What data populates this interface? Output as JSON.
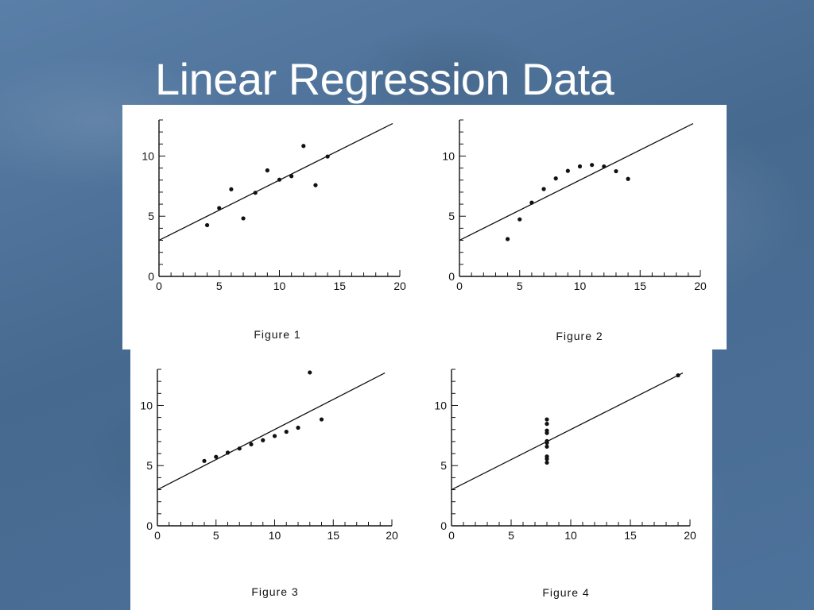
{
  "slide": {
    "title": "Linear Regression Data"
  },
  "chart_data": [
    {
      "type": "scatter",
      "caption": "Figure 1",
      "xlim": [
        0,
        20
      ],
      "ylim": [
        0,
        13
      ],
      "xticks": [
        0,
        5,
        10,
        15,
        20
      ],
      "yticks": [
        0,
        5,
        10
      ],
      "regression_line": {
        "intercept": 3.0,
        "slope": 0.5
      },
      "points": [
        [
          10,
          8.04
        ],
        [
          8,
          6.95
        ],
        [
          13,
          7.58
        ],
        [
          9,
          8.81
        ],
        [
          11,
          8.33
        ],
        [
          14,
          9.96
        ],
        [
          6,
          7.24
        ],
        [
          4,
          4.26
        ],
        [
          12,
          10.84
        ],
        [
          7,
          4.82
        ],
        [
          5,
          5.68
        ]
      ]
    },
    {
      "type": "scatter",
      "caption": "Figure 2",
      "xlim": [
        0,
        20
      ],
      "ylim": [
        0,
        13
      ],
      "xticks": [
        0,
        5,
        10,
        15,
        20
      ],
      "yticks": [
        0,
        5,
        10
      ],
      "regression_line": {
        "intercept": 3.0,
        "slope": 0.5
      },
      "points": [
        [
          10,
          9.14
        ],
        [
          8,
          8.14
        ],
        [
          13,
          8.74
        ],
        [
          9,
          8.77
        ],
        [
          11,
          9.26
        ],
        [
          14,
          8.1
        ],
        [
          6,
          6.13
        ],
        [
          4,
          3.1
        ],
        [
          12,
          9.13
        ],
        [
          7,
          7.26
        ],
        [
          5,
          4.74
        ]
      ]
    },
    {
      "type": "scatter",
      "caption": "Figure 3",
      "xlim": [
        0,
        20
      ],
      "ylim": [
        0,
        13
      ],
      "xticks": [
        0,
        5,
        10,
        15,
        20
      ],
      "yticks": [
        0,
        5,
        10
      ],
      "regression_line": {
        "intercept": 3.0,
        "slope": 0.5
      },
      "points": [
        [
          10,
          7.46
        ],
        [
          8,
          6.77
        ],
        [
          13,
          12.74
        ],
        [
          9,
          7.11
        ],
        [
          11,
          7.81
        ],
        [
          14,
          8.84
        ],
        [
          6,
          6.08
        ],
        [
          4,
          5.39
        ],
        [
          12,
          8.15
        ],
        [
          7,
          6.42
        ],
        [
          5,
          5.73
        ]
      ]
    },
    {
      "type": "scatter",
      "caption": "Figure 4",
      "xlim": [
        0,
        20
      ],
      "ylim": [
        0,
        13
      ],
      "xticks": [
        0,
        5,
        10,
        15,
        20
      ],
      "yticks": [
        0,
        5,
        10
      ],
      "regression_line": {
        "intercept": 3.0,
        "slope": 0.5
      },
      "points": [
        [
          8,
          6.58
        ],
        [
          8,
          5.76
        ],
        [
          8,
          7.71
        ],
        [
          8,
          8.84
        ],
        [
          8,
          8.47
        ],
        [
          8,
          7.04
        ],
        [
          8,
          5.25
        ],
        [
          19,
          12.5
        ],
        [
          8,
          5.56
        ],
        [
          8,
          7.91
        ],
        [
          8,
          6.89
        ]
      ]
    }
  ]
}
